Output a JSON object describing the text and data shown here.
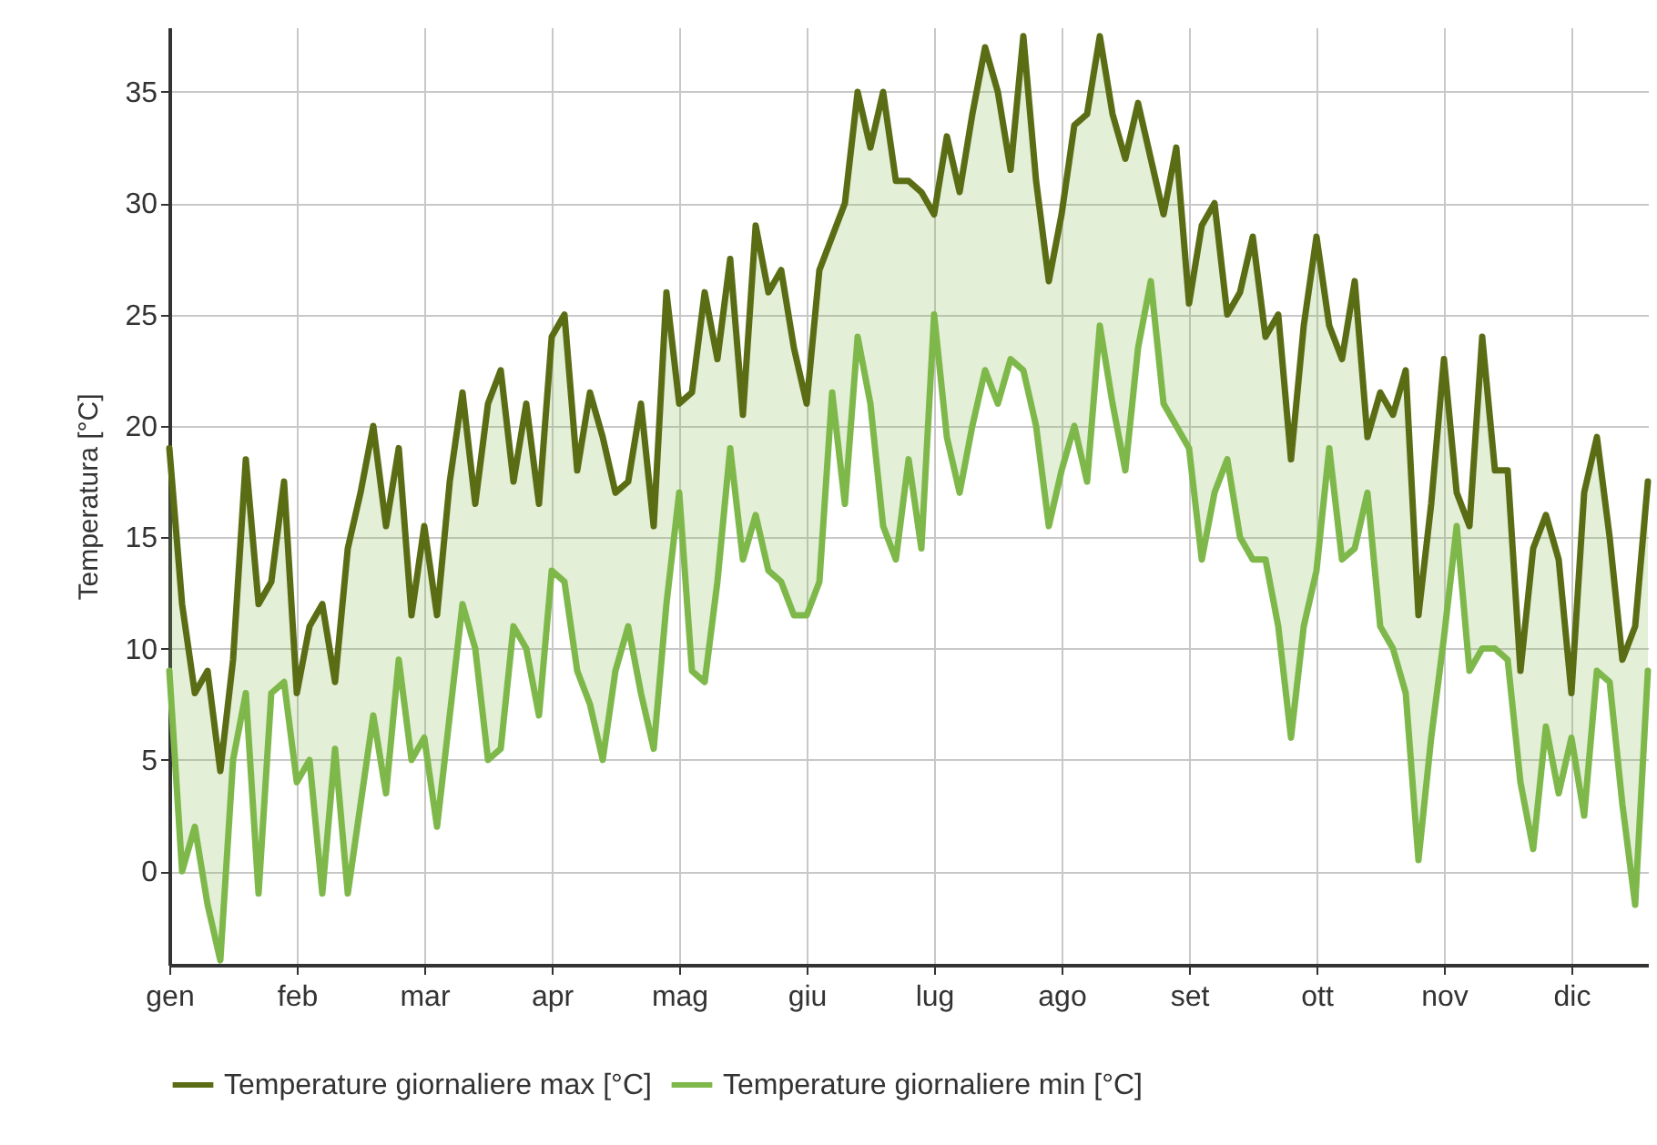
{
  "chart_data": {
    "type": "line",
    "ylabel": "Temperatura [°C]",
    "categories": [
      "gen",
      null,
      null,
      null,
      null,
      null,
      null,
      null,
      null,
      null,
      "feb",
      null,
      null,
      null,
      null,
      null,
      null,
      null,
      null,
      null,
      "mar",
      null,
      null,
      null,
      null,
      null,
      null,
      null,
      null,
      null,
      "apr",
      null,
      null,
      null,
      null,
      null,
      null,
      null,
      null,
      null,
      "mag",
      null,
      null,
      null,
      null,
      null,
      null,
      null,
      null,
      null,
      "giu",
      null,
      null,
      null,
      null,
      null,
      null,
      null,
      null,
      null,
      "lug",
      null,
      null,
      null,
      null,
      null,
      null,
      null,
      null,
      null,
      "ago",
      null,
      null,
      null,
      null,
      null,
      null,
      null,
      null,
      null,
      "set",
      null,
      null,
      null,
      null,
      null,
      null,
      null,
      null,
      null,
      "ott",
      null,
      null,
      null,
      null,
      null,
      null,
      null,
      null,
      null,
      "nov",
      null,
      null,
      null,
      null,
      null,
      null,
      null,
      null,
      null,
      "dic",
      null,
      null,
      null,
      null,
      null,
      null
    ],
    "series": [
      {
        "name": "Temperature giornaliere max [°C]",
        "color": "#5b6d14",
        "values": [
          19,
          12,
          8,
          9,
          4.5,
          9.5,
          18.5,
          12,
          13,
          17.5,
          8,
          11,
          12,
          8.5,
          14.5,
          17,
          20,
          15.5,
          19,
          11.5,
          15.5,
          11.5,
          17.5,
          21.5,
          16.5,
          21,
          22.5,
          17.5,
          21,
          16.5,
          24,
          25,
          18,
          21.5,
          19.5,
          17,
          17.5,
          21,
          15.5,
          26,
          21,
          21.5,
          26,
          23,
          27.5,
          20.5,
          29,
          26,
          27,
          23.5,
          21,
          27,
          28.5,
          30,
          35,
          32.5,
          35,
          31,
          31,
          30.5,
          29.5,
          33,
          30.5,
          34,
          37,
          35,
          31.5,
          37.5,
          31,
          26.5,
          29.5,
          33.5,
          34,
          37.5,
          34,
          32,
          34.5,
          32,
          29.5,
          32.5,
          25.5,
          29,
          30,
          25,
          26,
          28.5,
          24,
          25,
          18.5,
          24.5,
          28.5,
          24.5,
          23,
          26.5,
          19.5,
          21.5,
          20.5,
          22.5,
          11.5,
          16.5,
          23,
          17,
          15.5,
          24,
          18,
          18,
          9,
          14.5,
          16,
          14,
          8,
          17,
          19.5,
          15,
          9.5,
          11,
          17.5
        ]
      },
      {
        "name": "Temperature giornaliere min [°C]",
        "color": "#7fb84a",
        "values": [
          9,
          0,
          2,
          -1.5,
          -4,
          5,
          8,
          -1,
          8,
          8.5,
          4,
          5,
          -1,
          5.5,
          -1,
          3,
          7,
          3.5,
          9.5,
          5,
          6,
          2,
          7,
          12,
          10,
          5,
          5.5,
          11,
          10,
          7,
          13.5,
          13,
          9,
          7.5,
          5,
          9,
          11,
          8,
          5.5,
          12,
          17,
          9,
          8.5,
          13,
          19,
          14,
          16,
          13.5,
          13,
          11.5,
          11.5,
          13,
          21.5,
          16.5,
          24,
          21,
          15.5,
          14,
          18.5,
          14.5,
          25,
          19.5,
          17,
          20,
          22.5,
          21,
          23,
          22.5,
          20,
          15.5,
          18,
          20,
          17.5,
          24.5,
          21,
          18,
          23.5,
          26.5,
          21,
          20,
          19,
          14,
          17,
          18.5,
          15,
          14,
          14,
          11,
          6,
          11,
          13.5,
          19,
          14,
          14.5,
          17,
          11,
          10,
          8,
          0.5,
          6,
          10.5,
          15.5,
          9,
          10,
          10,
          9.5,
          4,
          1,
          6.5,
          3.5,
          6,
          2.5,
          9,
          8.5,
          3,
          -1.5,
          9
        ],
        "lower": [
          9,
          0,
          2,
          -1.5,
          -4,
          5,
          8,
          -1,
          8,
          8.5,
          4,
          5,
          -1,
          5.5,
          -1,
          3,
          7,
          3.5,
          9.5,
          5,
          6,
          2,
          7,
          12,
          10,
          5,
          5.5,
          11,
          10,
          7,
          13.5,
          13,
          9,
          7.5,
          5,
          9,
          11,
          8,
          5.5,
          12,
          17,
          9,
          8.5,
          13,
          19,
          14,
          16,
          13.5,
          13,
          11.5,
          11.5,
          13,
          21.5,
          16.5,
          24,
          21,
          15.5,
          14,
          18.5,
          14.5,
          25,
          19.5,
          17,
          20,
          22.5,
          21,
          23,
          22.5,
          20,
          15.5,
          18,
          20,
          17.5,
          24.5,
          21,
          18,
          23.5,
          26.5,
          21,
          20,
          19,
          14,
          17,
          18.5,
          15,
          14,
          14,
          11,
          6,
          11,
          13.5,
          19,
          14,
          14.5,
          17,
          11,
          10,
          8,
          0.5,
          6,
          10.5,
          15.5,
          9,
          10,
          10,
          9.5,
          4,
          1,
          6.5,
          3.5,
          6,
          2.5,
          9,
          8.5,
          3,
          -1.5,
          9
        ],
        "upper": [
          19,
          12,
          8,
          9,
          4.5,
          9.5,
          18.5,
          12,
          13,
          17.5,
          8,
          11,
          12,
          8.5,
          14.5,
          17,
          20,
          15.5,
          19,
          11.5,
          15.5,
          11.5,
          17.5,
          21.5,
          16.5,
          21,
          22.5,
          17.5,
          21,
          16.5,
          24,
          25,
          18,
          21.5,
          19.5,
          17,
          17.5,
          21,
          15.5,
          26,
          21,
          21.5,
          26,
          23,
          27.5,
          20.5,
          29,
          26,
          27,
          23.5,
          21,
          27,
          28.5,
          30,
          35,
          32.5,
          35,
          31,
          31,
          30.5,
          29.5,
          33,
          30.5,
          34,
          37,
          35,
          31.5,
          37.5,
          31,
          26.5,
          29.5,
          33.5,
          34,
          37.5,
          34,
          32,
          34.5,
          32,
          29.5,
          32.5,
          25.5,
          29,
          30,
          25,
          26,
          28.5,
          24,
          25,
          18.5,
          24.5,
          28.5,
          24.5,
          23,
          26.5,
          19.5,
          21.5,
          20.5,
          22.5,
          11.5,
          16.5,
          23,
          17,
          15.5,
          24,
          18,
          18,
          9,
          14.5,
          16,
          14,
          8,
          17,
          19.5,
          15,
          9.5,
          11,
          17.5
        ]
      }
    ],
    "ylim": [
      -4.2,
      37.9
    ],
    "yticks": [
      0,
      5,
      10,
      15,
      20,
      25,
      30,
      35
    ],
    "grid": true,
    "legend": "bottom",
    "line_style": "solid"
  }
}
